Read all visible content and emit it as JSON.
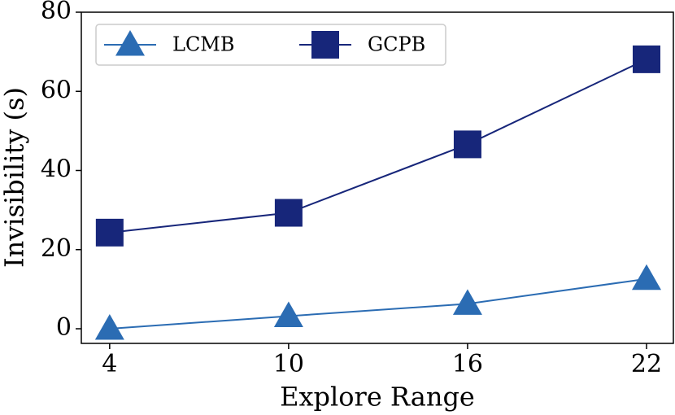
{
  "chart_data": {
    "type": "line",
    "x_label": "Explore Range",
    "y_label": "Invisibility (s)",
    "x": [
      4,
      10,
      16,
      22
    ],
    "series": [
      {
        "name": "LCMB",
        "color": "#2b6cb3",
        "marker": "triangle",
        "values": [
          0,
          3.2,
          6.3,
          12.6
        ]
      },
      {
        "name": "GCPB",
        "color": "#17267a",
        "marker": "square",
        "values": [
          24.3,
          29.3,
          46.6,
          68.1
        ]
      }
    ],
    "xlim": [
      3.05,
      22.9
    ],
    "xticks": [
      4,
      10,
      16,
      22
    ],
    "ylim": [
      -3.7,
      80
    ],
    "yticks": [
      0,
      20,
      40,
      60,
      80
    ],
    "grid": false,
    "legend": "upper left"
  }
}
